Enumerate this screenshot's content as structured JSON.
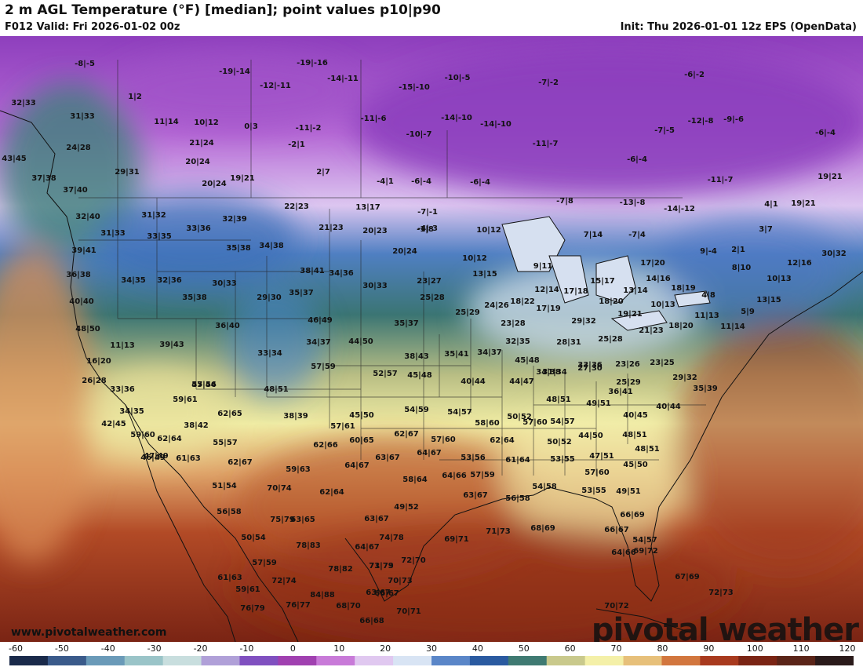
{
  "header": {
    "title": "2 m AGL Temperature (°F) [median]; point values p10|p90",
    "valid": "F012 Valid: Fri 2026-01-02 00z",
    "init": "Init: Thu 2026-01-01 12z EPS (OpenData)"
  },
  "footer": {
    "website": "www.pivotalweather.com",
    "brand": "pivotal weather"
  },
  "colorbar": {
    "unit": "°F",
    "ticks": [
      "-60",
      "-50",
      "-40",
      "-30",
      "-20",
      "-10",
      "0",
      "10",
      "20",
      "30",
      "40",
      "50",
      "60",
      "70",
      "80",
      "90",
      "100",
      "110",
      "120"
    ],
    "colors": [
      "#1a2a4a",
      "#3a5a8a",
      "#6a9ab8",
      "#9ac4c8",
      "#c8dede",
      "#b0a0d8",
      "#8050c0",
      "#a040b0",
      "#c87ad8",
      "#e0c8f0",
      "#d8e4f4",
      "#5a86c8",
      "#2a5aa0",
      "#3f7a72",
      "#c9c98c",
      "#f4f0a8",
      "#e7c07a",
      "#d2763e",
      "#a83a1e",
      "#7a2414",
      "#5a2418",
      "#2a1a1a"
    ]
  },
  "point_values": [
    "-8|-5",
    "-19|-16",
    "-19|-14",
    "-14|-11",
    "-12|-11",
    "-15|-10",
    "-10|-5",
    "-7|-2",
    "-6|-2",
    "1|2",
    "11|14",
    "10|12",
    "0|3",
    "-11|-2",
    "-11|-6",
    "-14|-10",
    "-14|-10",
    "-12|-8",
    "-9|-6",
    "-6|-4",
    "32|33",
    "31|33",
    "21|24",
    "-2|1",
    "-10|-7",
    "-11|-7",
    "-7|-5",
    "24|28",
    "20|24",
    "-6|-4",
    "43|45",
    "29|31",
    "2|7",
    "-4|1",
    "-6|-4",
    "-6|-4",
    "-11|-7",
    "19|21",
    "37|38",
    "20|24",
    "19|21",
    "-7|-1",
    "-7|8",
    "-13|-8",
    "-14|-12",
    "4|1",
    "19|21",
    "37|40",
    "22|23",
    "13|17",
    "-4|-3",
    "10|12",
    "7|14",
    "-7|4",
    "3|7",
    "32|40",
    "31|32",
    "33|36",
    "32|39",
    "21|23",
    "20|23",
    "-1|8",
    "31|33",
    "33|35",
    "35|38",
    "34|38",
    "20|24",
    "10|12",
    "9|11",
    "17|20",
    "9|-4",
    "2|1",
    "30|32",
    "39|41",
    "12|16",
    "36|38",
    "34|35",
    "32|36",
    "38|41",
    "34|36",
    "23|27",
    "13|15",
    "14|16",
    "18|19",
    "8|10",
    "10|13",
    "30|33",
    "12|14",
    "17|18",
    "15|17",
    "13|14",
    "4|8",
    "13|15",
    "40|40",
    "35|38",
    "29|30",
    "35|37",
    "30|33",
    "25|28",
    "24|26",
    "18|22",
    "17|19",
    "18|20",
    "10|13",
    "48|50",
    "36|40",
    "46|49",
    "35|37",
    "25|29",
    "23|28",
    "29|32",
    "19|21",
    "18|20",
    "11|13",
    "5|9",
    "11|13",
    "39|43",
    "33|34",
    "34|37",
    "44|50",
    "38|43",
    "35|41",
    "34|37",
    "32|35",
    "28|31",
    "25|28",
    "21|23",
    "11|14",
    "16|20",
    "57|59",
    "52|57",
    "45|48",
    "45|48",
    "31|34",
    "27|30",
    "23|26",
    "23|25",
    "26|28",
    "55|56",
    "48|51",
    "40|44",
    "44|47",
    "34|38",
    "33|36",
    "25|29",
    "29|32",
    "33|36",
    "59|61",
    "47|44",
    "48|51",
    "36|41",
    "35|39",
    "34|35",
    "62|65",
    "38|39",
    "45|50",
    "54|59",
    "54|57",
    "50|52",
    "49|51",
    "40|44",
    "38|42",
    "57|61",
    "58|60",
    "54|57",
    "40|45",
    "42|45",
    "59|60",
    "62|64",
    "55|57",
    "62|66",
    "60|65",
    "62|67",
    "57|60",
    "57|60",
    "50|52",
    "44|50",
    "48|51",
    "46|49",
    "61|63",
    "62|67",
    "59|63",
    "64|67",
    "63|67",
    "64|67",
    "62|64",
    "53|55",
    "47|51",
    "48|51",
    "47|49",
    "61|64",
    "53|56",
    "57|60",
    "45|50",
    "51|54",
    "70|74",
    "62|64",
    "58|64",
    "64|66",
    "57|59",
    "54|58",
    "53|55",
    "49|51",
    "49|52",
    "63|65",
    "63|67",
    "56|58",
    "56|58",
    "75|79",
    "63|67",
    "66|69",
    "50|54",
    "78|83",
    "64|67",
    "74|78",
    "69|71",
    "71|73",
    "68|69",
    "66|67",
    "54|57",
    "57|59",
    "71|79",
    "72|70",
    "64|66",
    "61|63",
    "78|82",
    "73|73",
    "69|72",
    "59|61",
    "72|74",
    "84|88",
    "63|67",
    "70|73",
    "67|69",
    "76|79",
    "76|77",
    "68|70",
    "66|67",
    "72|73",
    "70|71",
    "66|68",
    "70|72"
  ]
}
